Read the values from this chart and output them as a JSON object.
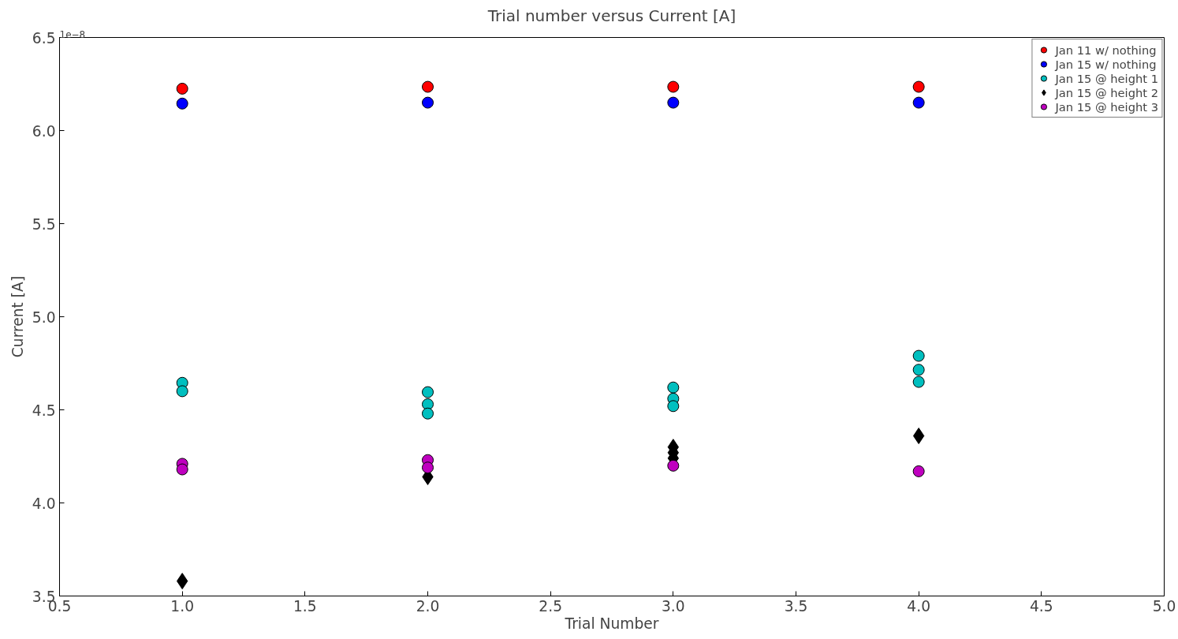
{
  "chart_data": {
    "type": "scatter",
    "title": "Trial number versus Current [A]",
    "xlabel": "Trial Number",
    "ylabel": "Current [A]",
    "annotations": [
      "1e−8"
    ],
    "xlim": [
      0.5,
      5.0
    ],
    "xticks": [
      {
        "value": 0.5,
        "label": "0.5"
      },
      {
        "value": 1.0,
        "label": "1.0"
      },
      {
        "value": 1.5,
        "label": "1.5"
      },
      {
        "value": 2.0,
        "label": "2.0"
      },
      {
        "value": 2.5,
        "label": "2.5"
      },
      {
        "value": 3.0,
        "label": "3.0"
      },
      {
        "value": 3.5,
        "label": "3.5"
      },
      {
        "value": 4.0,
        "label": "4.0"
      },
      {
        "value": 4.5,
        "label": "4.5"
      },
      {
        "value": 5.0,
        "label": "5.0"
      }
    ],
    "ylim": [
      3.5,
      6.5
    ],
    "yticks": [
      3.5,
      {
        "value": 4.0,
        "label": "4.0"
      },
      4.5,
      {
        "value": 5.0,
        "label": "5.0"
      },
      5.5,
      {
        "value": 6.0,
        "label": "6.0"
      },
      6.5
    ],
    "grid": false,
    "legend": "top right",
    "series": [
      {
        "name": "Jan 11 w/ nothing",
        "color": "#ff0000",
        "marker": "circle",
        "x": [
          1,
          2,
          3,
          4
        ],
        "values": [
          6.225,
          6.235,
          6.235,
          6.235
        ]
      },
      {
        "name": "Jan 15 w/ nothing",
        "color": "#0000ff",
        "marker": "circle",
        "x": [
          1,
          2,
          3,
          4
        ],
        "values": [
          6.145,
          6.15,
          6.15,
          6.15
        ]
      },
      {
        "name": "Jan 15 @ height 1",
        "color": "#00bfbf",
        "marker": "circle",
        "x": [
          1,
          1,
          2,
          2,
          2,
          3,
          3,
          3,
          4,
          4,
          4
        ],
        "values": [
          4.645,
          4.6,
          4.595,
          4.53,
          4.48,
          4.62,
          4.56,
          4.52,
          4.79,
          4.715,
          4.65
        ]
      },
      {
        "name": "Jan 15 @ height 2",
        "color": "#000000",
        "marker": "diamond",
        "x": [
          1,
          2,
          3,
          3,
          3,
          4
        ],
        "values": [
          3.58,
          4.14,
          4.3,
          4.27,
          4.24,
          4.36
        ]
      },
      {
        "name": "Jan 15 @ height 3",
        "color": "#bf00bf",
        "marker": "circle",
        "x": [
          1,
          1,
          2,
          2,
          3,
          4
        ],
        "values": [
          4.21,
          4.18,
          4.23,
          4.19,
          4.2,
          4.17
        ]
      }
    ]
  }
}
